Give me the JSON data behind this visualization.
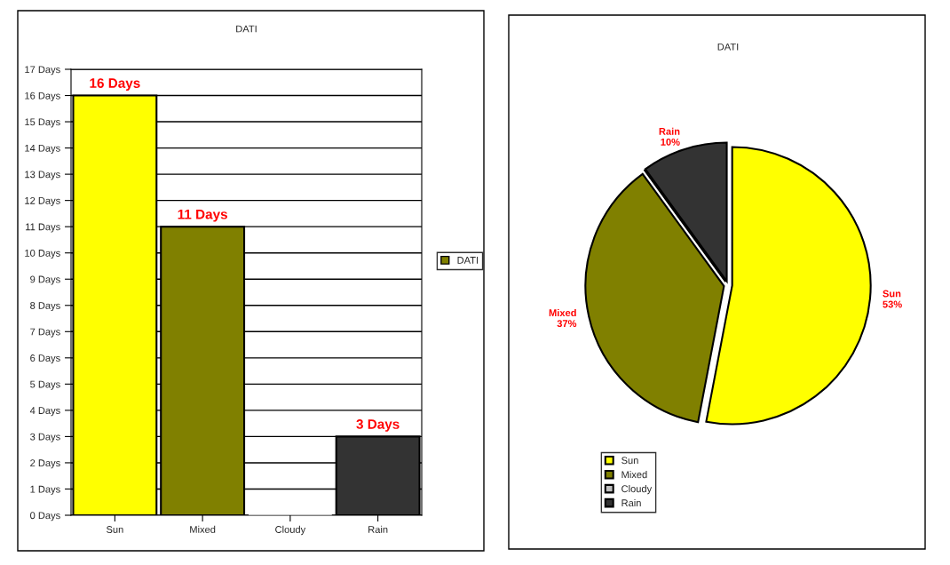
{
  "chart_data": [
    {
      "type": "bar",
      "title": "DATI",
      "categories": [
        "Sun",
        "Mixed",
        "Cloudy",
        "Rain"
      ],
      "series": [
        {
          "name": "DATI",
          "color": "#808000",
          "colors": [
            "#ffff00",
            "#808000",
            "#c0c0c0",
            "#333333"
          ],
          "values": [
            16,
            11,
            0,
            3
          ],
          "value_labels": [
            "16 Days",
            "11 Days",
            null,
            "3 Days"
          ]
        }
      ],
      "ylim": [
        0,
        17
      ],
      "yticks": [
        {
          "value": 0,
          "label": "0 Days"
        },
        {
          "value": 1,
          "label": "1 Days"
        },
        {
          "value": 2,
          "label": "2 Days"
        },
        {
          "value": 3,
          "label": "3 Days"
        },
        {
          "value": 4,
          "label": "4 Days"
        },
        {
          "value": 5,
          "label": "5 Days"
        },
        {
          "value": 6,
          "label": "6 Days"
        },
        {
          "value": 7,
          "label": "7 Days"
        },
        {
          "value": 8,
          "label": "8 Days"
        },
        {
          "value": 9,
          "label": "9 Days"
        },
        {
          "value": 10,
          "label": "10 Days"
        },
        {
          "value": 11,
          "label": "11 Days"
        },
        {
          "value": 12,
          "label": "12 Days"
        },
        {
          "value": 13,
          "label": "13 Days"
        },
        {
          "value": 14,
          "label": "14 Days"
        },
        {
          "value": 15,
          "label": "15 Days"
        },
        {
          "value": 16,
          "label": "16 Days"
        },
        {
          "value": 17,
          "label": "17 Days"
        }
      ],
      "grid": "y",
      "legend": "right"
    },
    {
      "type": "pie",
      "title": "DATI",
      "categories": [
        "Sun",
        "Mixed",
        "Cloudy",
        "Rain"
      ],
      "values": [
        53,
        37,
        0,
        10
      ],
      "colors": [
        "#ffff00",
        "#808000",
        "#c0c0c0",
        "#333333"
      ],
      "value_labels": [
        "Sun\n53%",
        "Mixed\n37%",
        null,
        "Rain\n10%"
      ],
      "legend": "bottom left"
    }
  ]
}
